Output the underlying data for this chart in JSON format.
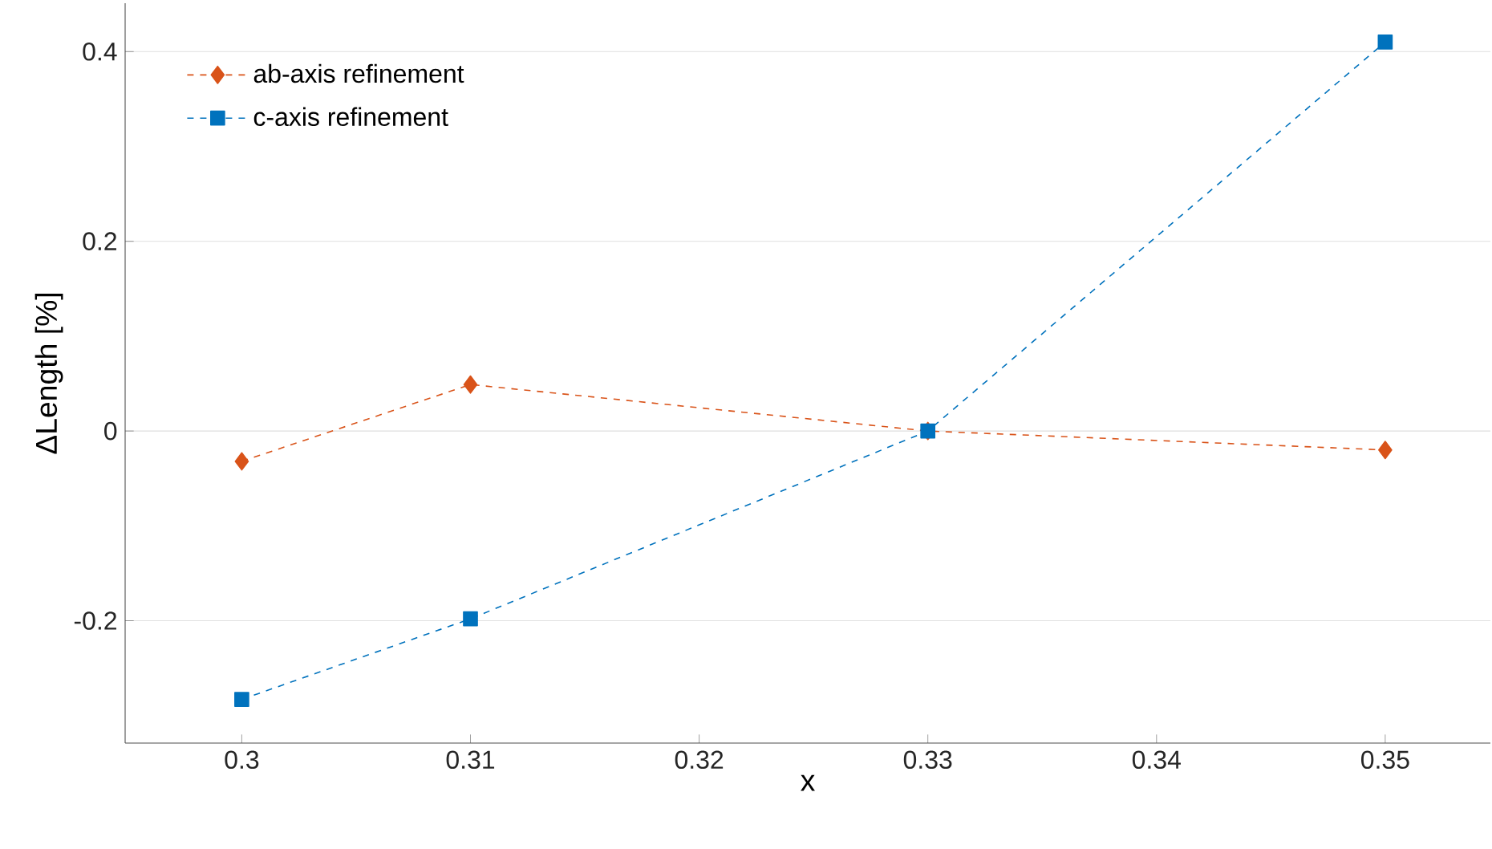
{
  "chart_data": {
    "type": "line",
    "xlabel": "x",
    "ylabel": "ΔLength [%]",
    "x": [
      0.3,
      0.31,
      0.33,
      0.35
    ],
    "series": [
      {
        "name": "ab-axis refinement",
        "color": "#d95319",
        "marker": "diamond",
        "values": [
          -0.032,
          0.049,
          0,
          -0.02
        ]
      },
      {
        "name": "c-axis refinement",
        "color": "#0072bd",
        "marker": "square",
        "values": [
          -0.283,
          -0.198,
          0,
          0.41
        ]
      }
    ],
    "xlim": [
      0.2949,
      0.3546
    ],
    "ylim": [
      -0.329,
      0.451
    ],
    "xticks": [
      0.3,
      0.31,
      0.32,
      0.33,
      0.34,
      0.35
    ],
    "yticks": [
      -0.2,
      0,
      0.2,
      0.4
    ],
    "grid": "y",
    "legend": "top left",
    "line_style": "dashed"
  }
}
